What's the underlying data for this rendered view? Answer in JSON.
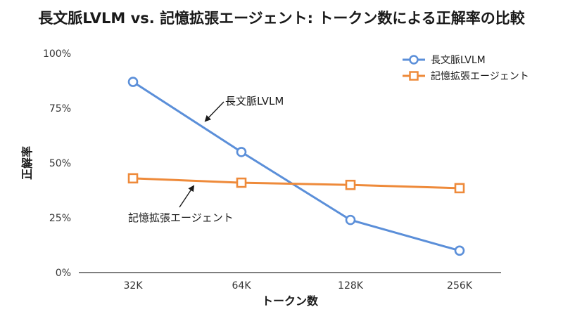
{
  "chart_data": {
    "type": "line",
    "title": "長文脈LVLM vs. 記憶拡張エージェント: トークン数による正解率の比較",
    "xlabel": "トークン数",
    "ylabel": "正解率",
    "categories": [
      "32K",
      "64K",
      "128K",
      "256K"
    ],
    "ylim": [
      0,
      100
    ],
    "yticks": [
      0,
      25,
      50,
      75,
      100
    ],
    "ytick_labels": [
      "0%",
      "25%",
      "50%",
      "75%",
      "100%"
    ],
    "grid": false,
    "legend_position": "top-right",
    "series": [
      {
        "name": "長文脈LVLM",
        "values": [
          87,
          55,
          24,
          10
        ],
        "color": "#5b8fd9",
        "marker": "circle"
      },
      {
        "name": "記憶拡張エージェント",
        "values": [
          43,
          41,
          40,
          38.5
        ],
        "color": "#ee8a3a",
        "marker": "square"
      }
    ],
    "annotations": [
      {
        "text": "長文脈LVLM",
        "series": 0
      },
      {
        "text": "記憶拡張エージェント",
        "series": 1
      }
    ]
  }
}
